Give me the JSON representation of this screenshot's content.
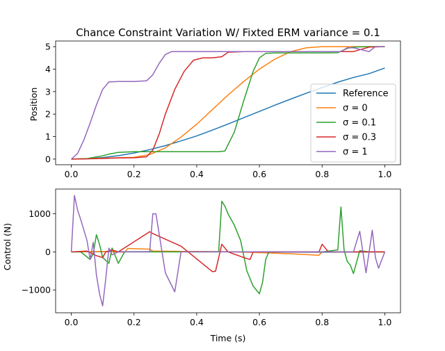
{
  "chart_data": [
    {
      "type": "line",
      "title": "Chance Constraint Variation W/ Fixted ERM variance = 0.1",
      "xlabel": "",
      "ylabel": "Position",
      "xlim": [
        -0.05,
        1.05
      ],
      "ylim": [
        -0.25,
        5.25
      ],
      "xticks": [
        "0.0",
        "0.2",
        "0.4",
        "0.6",
        "0.8",
        "1.0"
      ],
      "yticks": [
        "0",
        "1",
        "2",
        "3",
        "4",
        "5"
      ],
      "legend": "center-right",
      "series": [
        {
          "name": "Reference",
          "color": "#1f77b4",
          "x": [
            0,
            0.05,
            0.1,
            0.15,
            0.2,
            0.25,
            0.3,
            0.35,
            0.4,
            0.45,
            0.5,
            0.55,
            0.6,
            0.65,
            0.7,
            0.75,
            0.8,
            0.85,
            0.9,
            0.95,
            1.0
          ],
          "y": [
            0,
            0.02,
            0.07,
            0.15,
            0.27,
            0.42,
            0.6,
            0.81,
            1.03,
            1.29,
            1.56,
            1.84,
            2.12,
            2.4,
            2.67,
            2.93,
            3.18,
            3.42,
            3.63,
            3.8,
            4.05
          ]
        },
        {
          "name": "σ = 0",
          "color": "#ff7f0e",
          "x": [
            0,
            0.05,
            0.1,
            0.15,
            0.2,
            0.25,
            0.3,
            0.35,
            0.4,
            0.45,
            0.5,
            0.55,
            0.6,
            0.65,
            0.7,
            0.75,
            0.8,
            0.85,
            0.9,
            0.95,
            1.0
          ],
          "y": [
            0,
            0.02,
            0.04,
            0.06,
            0.08,
            0.2,
            0.5,
            0.98,
            1.55,
            2.2,
            2.85,
            3.45,
            4.0,
            4.45,
            4.78,
            4.95,
            5.0,
            5.0,
            5.0,
            5.0,
            5.0
          ]
        },
        {
          "name": "σ = 0.1",
          "color": "#2ca02c",
          "x": [
            0,
            0.05,
            0.1,
            0.12,
            0.15,
            0.2,
            0.3,
            0.4,
            0.47,
            0.49,
            0.52,
            0.55,
            0.58,
            0.6,
            0.62,
            0.65,
            0.7,
            0.8,
            0.85,
            0.88,
            0.9,
            0.95,
            1.0
          ],
          "y": [
            0,
            0.02,
            0.15,
            0.22,
            0.3,
            0.33,
            0.33,
            0.33,
            0.33,
            0.36,
            1.2,
            2.6,
            3.9,
            4.5,
            4.7,
            4.72,
            4.72,
            4.72,
            4.73,
            4.92,
            4.98,
            5.0,
            5.0
          ]
        },
        {
          "name": "σ = 0.3",
          "color": "#d62728",
          "x": [
            0,
            0.05,
            0.1,
            0.15,
            0.2,
            0.24,
            0.26,
            0.28,
            0.3,
            0.33,
            0.36,
            0.39,
            0.42,
            0.45,
            0.48,
            0.5,
            0.55,
            0.6,
            0.7,
            0.8,
            0.85,
            0.9,
            0.95,
            1.0
          ],
          "y": [
            0,
            0.01,
            0.03,
            0.05,
            0.06,
            0.1,
            0.4,
            1.1,
            2.0,
            3.1,
            3.9,
            4.4,
            4.5,
            4.5,
            4.55,
            4.75,
            4.78,
            4.78,
            4.78,
            4.78,
            4.78,
            4.78,
            4.98,
            5.0
          ]
        },
        {
          "name": "σ = 1",
          "color": "#9467bd",
          "x": [
            0,
            0.02,
            0.04,
            0.06,
            0.08,
            0.1,
            0.12,
            0.15,
            0.2,
            0.24,
            0.26,
            0.28,
            0.3,
            0.32,
            0.4,
            0.5,
            0.6,
            0.7,
            0.8,
            0.86,
            0.88,
            0.9,
            0.95,
            0.97,
            1.0
          ],
          "y": [
            0,
            0.25,
            0.85,
            1.6,
            2.4,
            3.1,
            3.43,
            3.45,
            3.45,
            3.48,
            3.75,
            4.25,
            4.65,
            4.78,
            4.78,
            4.78,
            4.78,
            4.78,
            4.78,
            4.78,
            4.95,
            4.95,
            4.78,
            5.0,
            5.0
          ]
        }
      ]
    },
    {
      "type": "line",
      "title": "",
      "xlabel": "Time (s)",
      "ylabel": "Control (N)",
      "xlim": [
        -0.05,
        1.05
      ],
      "ylim": [
        -1600,
        1650
      ],
      "xticks": [
        "0.0",
        "0.2",
        "0.4",
        "0.6",
        "0.8",
        "1.0"
      ],
      "yticks": [
        "−1000",
        "0",
        "1000"
      ],
      "series": [
        {
          "name": "Reference",
          "color": "#1f77b4",
          "x": [
            0,
            0.2,
            0.4,
            0.6,
            0.8,
            1.0
          ],
          "y": [
            0,
            5,
            10,
            -5,
            -10,
            0
          ]
        },
        {
          "name": "σ = 0",
          "color": "#ff7f0e",
          "x": [
            0,
            0.1,
            0.17,
            0.18,
            0.25,
            0.26,
            0.4,
            0.5,
            0.6,
            0.7,
            0.79,
            0.8,
            0.9,
            1.0
          ],
          "y": [
            0,
            10,
            -10,
            90,
            70,
            20,
            10,
            5,
            -20,
            -50,
            -90,
            0,
            0,
            0
          ]
        },
        {
          "name": "σ = 0.1",
          "color": "#2ca02c",
          "x": [
            0,
            0.03,
            0.06,
            0.07,
            0.08,
            0.09,
            0.1,
            0.12,
            0.13,
            0.15,
            0.17,
            0.2,
            0.3,
            0.4,
            0.47,
            0.48,
            0.49,
            0.5,
            0.52,
            0.54,
            0.56,
            0.58,
            0.6,
            0.61,
            0.62,
            0.63,
            0.7,
            0.8,
            0.85,
            0.86,
            0.87,
            0.88,
            0.89,
            0.9,
            0.92,
            0.95,
            1.0
          ],
          "y": [
            0,
            0,
            -200,
            -50,
            450,
            200,
            -150,
            -300,
            100,
            -300,
            0,
            0,
            0,
            0,
            0,
            1330,
            1200,
            1000,
            700,
            300,
            -500,
            -900,
            -1100,
            -800,
            -200,
            0,
            0,
            0,
            50,
            1180,
            50,
            -250,
            -350,
            -570,
            30,
            0,
            0
          ]
        },
        {
          "name": "σ = 0.3",
          "color": "#d62728",
          "x": [
            0,
            0.05,
            0.08,
            0.1,
            0.11,
            0.13,
            0.15,
            0.25,
            0.26,
            0.35,
            0.45,
            0.46,
            0.48,
            0.5,
            0.55,
            0.57,
            0.58,
            0.6,
            0.7,
            0.79,
            0.8,
            0.82,
            0.9,
            0.95,
            1.0
          ],
          "y": [
            0,
            20,
            -100,
            -150,
            0,
            50,
            0,
            530,
            480,
            150,
            -520,
            -510,
            200,
            0,
            -150,
            -200,
            0,
            0,
            0,
            0,
            200,
            0,
            0,
            0,
            0
          ]
        },
        {
          "name": "σ = 1",
          "color": "#9467bd",
          "x": [
            0,
            0.01,
            0.02,
            0.03,
            0.05,
            0.06,
            0.07,
            0.08,
            0.09,
            0.1,
            0.11,
            0.12,
            0.13,
            0.15,
            0.2,
            0.25,
            0.26,
            0.27,
            0.3,
            0.33,
            0.35,
            0.4,
            0.5,
            0.6,
            0.8,
            0.9,
            0.92,
            0.93,
            0.94,
            0.95,
            0.96,
            0.97,
            0.98,
            1.0
          ],
          "y": [
            0,
            1480,
            1100,
            850,
            300,
            -200,
            250,
            -600,
            -1100,
            -1420,
            -700,
            100,
            -80,
            0,
            0,
            0,
            1000,
            1000,
            -550,
            -1050,
            0,
            0,
            0,
            0,
            0,
            0,
            540,
            0,
            -550,
            0,
            570,
            -150,
            -430,
            0
          ]
        }
      ]
    }
  ]
}
